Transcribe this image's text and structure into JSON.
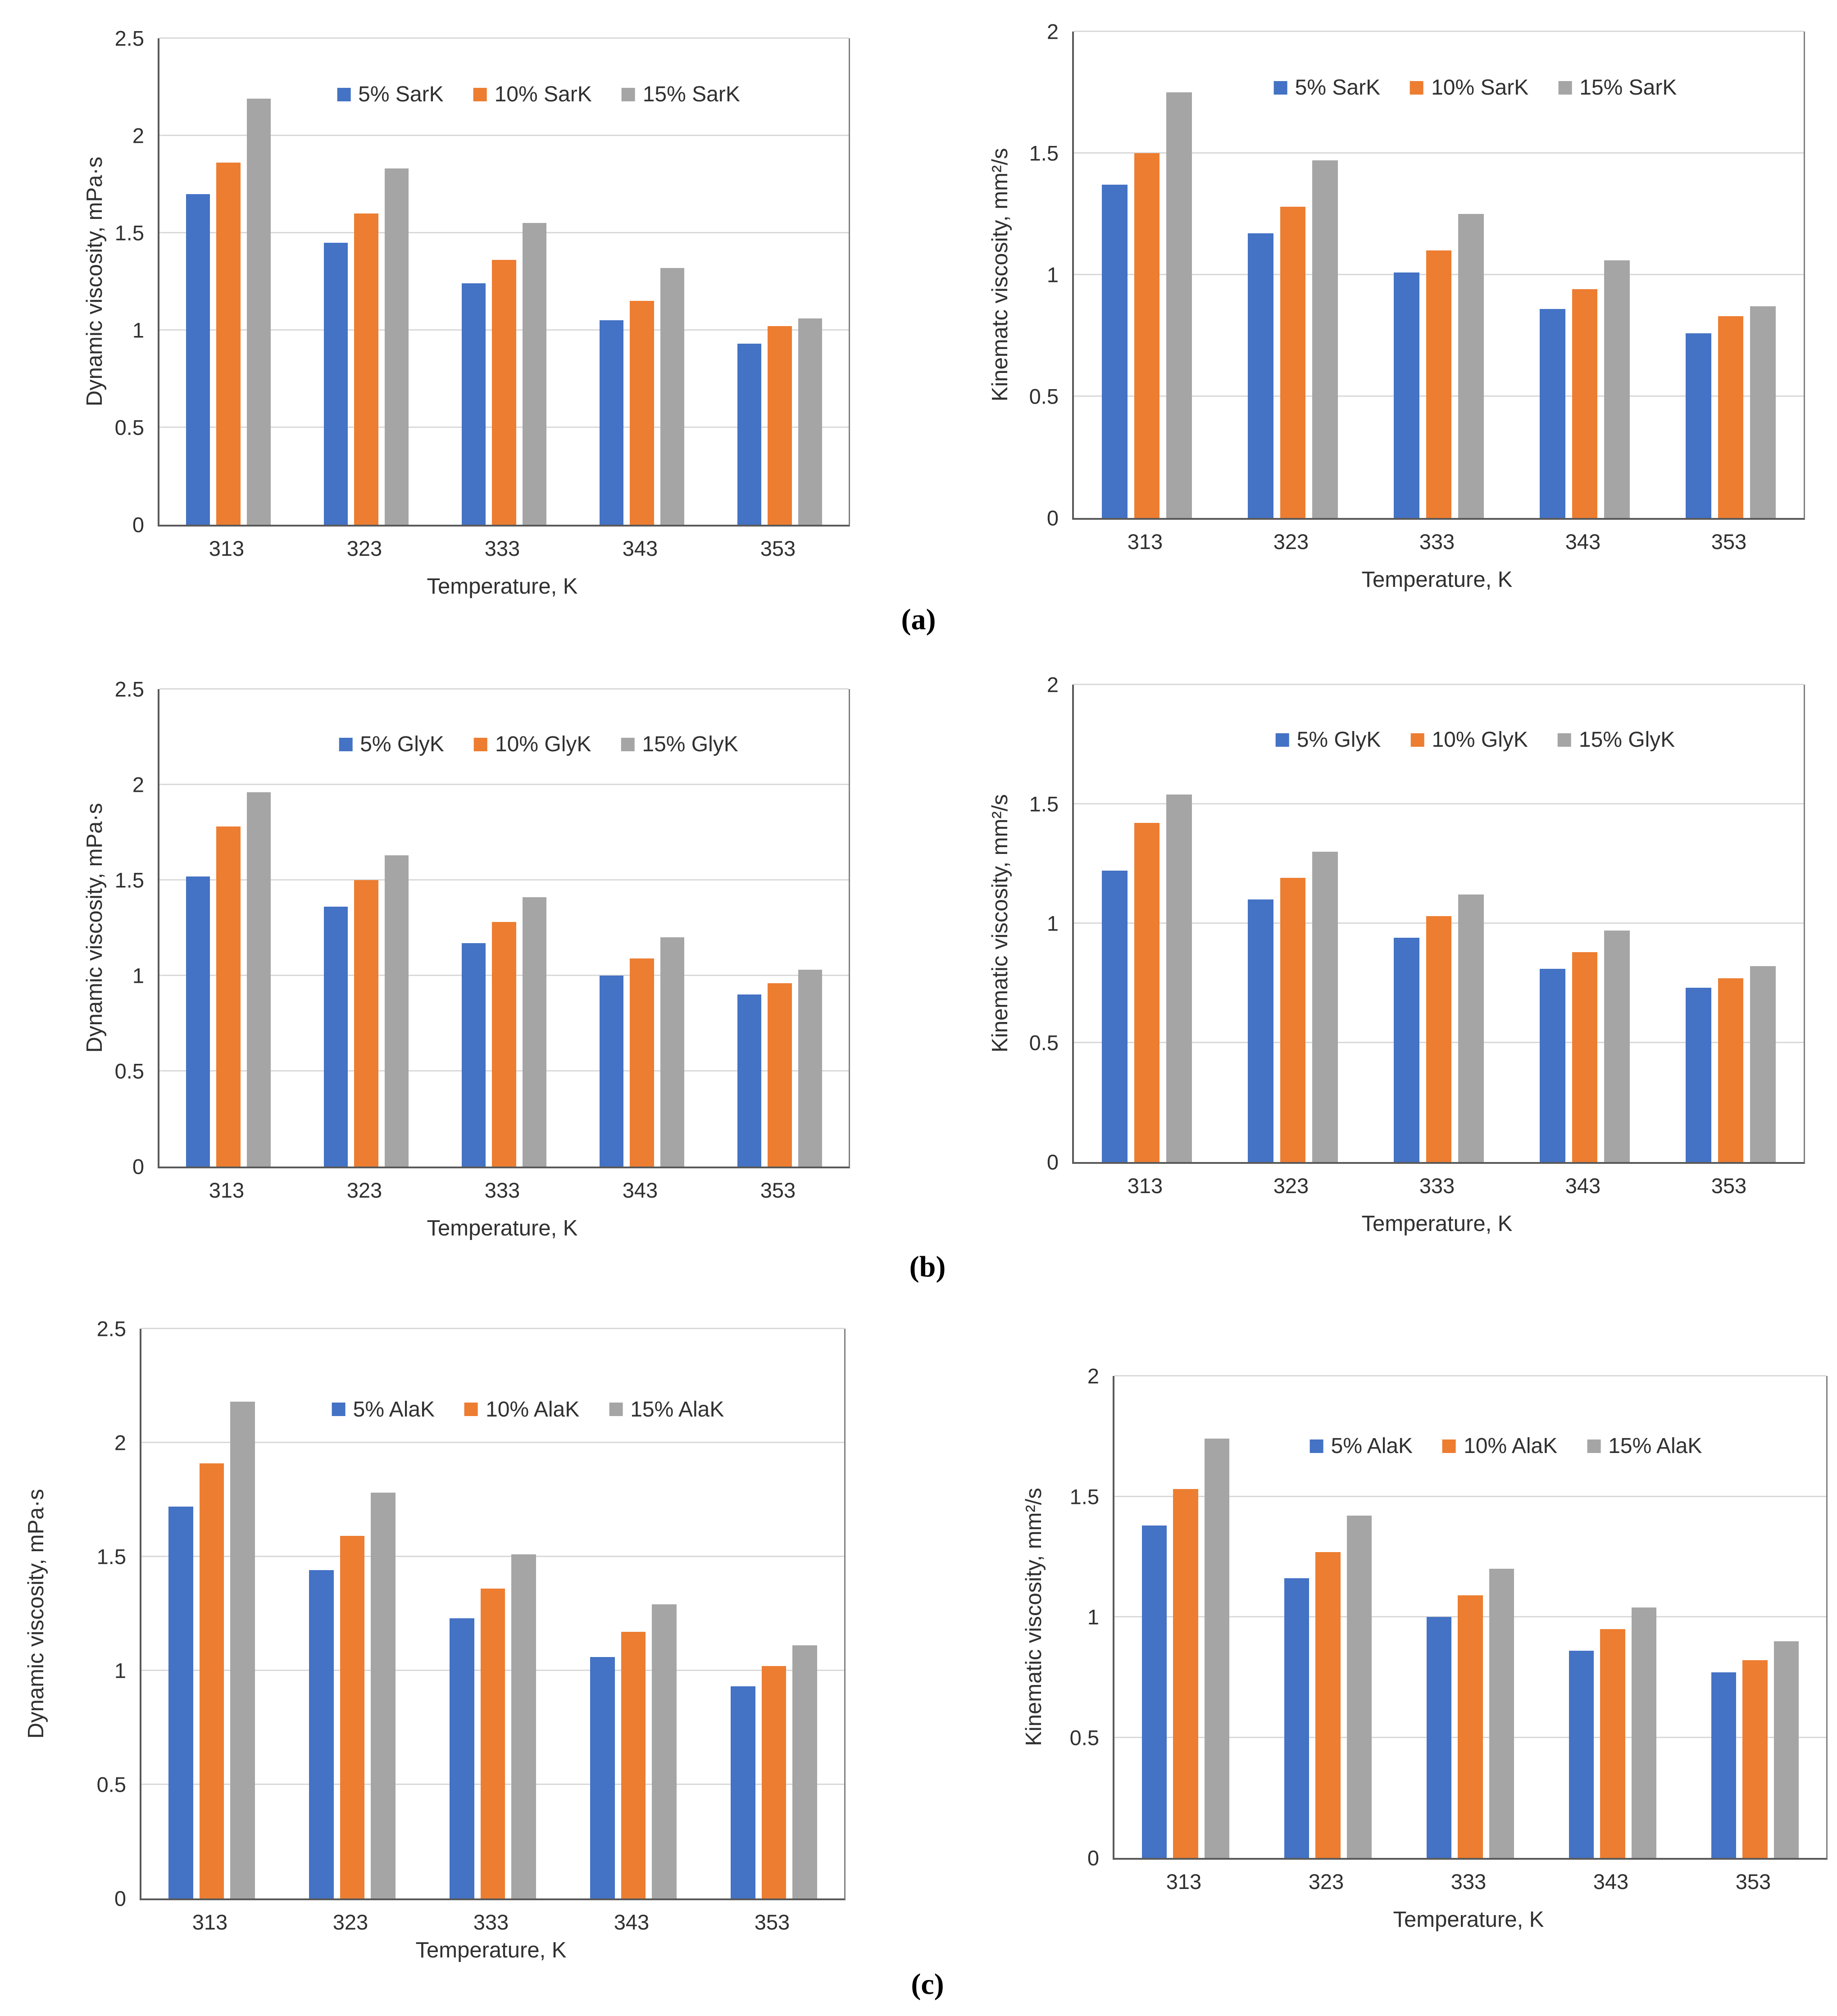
{
  "figure": {
    "panel_labels": [
      "(a)",
      "(b)",
      "(c)"
    ]
  },
  "colors": {
    "series": [
      "#4472C4",
      "#ED7D31",
      "#A5A5A5"
    ],
    "gridline": "#D9D9D9",
    "axis": "#595959",
    "text": "#303030"
  },
  "chart_data": [
    {
      "type": "bar",
      "panel": "a",
      "position": "left",
      "title": "",
      "ylabel": "Dynamic viscosity,  mPa·s",
      "xlabel": "Temperature, K",
      "categories": [
        "313",
        "323",
        "333",
        "343",
        "353"
      ],
      "ylim": [
        0,
        2.5
      ],
      "yticks": [
        0,
        0.5,
        1,
        1.5,
        2,
        2.5
      ],
      "ytick_labels": [
        "0",
        "0.5",
        "1",
        "1.5",
        "2",
        "2.5"
      ],
      "grid": true,
      "legend_position": "top-inside",
      "series": [
        {
          "name": "5% SarK",
          "values": [
            1.7,
            1.45,
            1.24,
            1.05,
            0.93
          ]
        },
        {
          "name": "10% SarK",
          "values": [
            1.86,
            1.6,
            1.36,
            1.15,
            1.02
          ]
        },
        {
          "name": "15% SarK",
          "values": [
            2.19,
            1.83,
            1.55,
            1.32,
            1.06
          ]
        }
      ]
    },
    {
      "type": "bar",
      "panel": "a",
      "position": "right",
      "title": "",
      "ylabel": "Kinematc viscosity,  mm²/s",
      "xlabel": "Temperature, K",
      "categories": [
        "313",
        "323",
        "333",
        "343",
        "353"
      ],
      "ylim": [
        0,
        2
      ],
      "yticks": [
        0,
        0.5,
        1,
        1.5,
        2
      ],
      "ytick_labels": [
        "0",
        "0.5",
        "1",
        "1.5",
        "2"
      ],
      "grid": true,
      "legend_position": "top-inside",
      "series": [
        {
          "name": "5% SarK",
          "values": [
            1.37,
            1.17,
            1.01,
            0.86,
            0.76
          ]
        },
        {
          "name": "10% SarK",
          "values": [
            1.5,
            1.28,
            1.1,
            0.94,
            0.83
          ]
        },
        {
          "name": "15% SarK",
          "values": [
            1.75,
            1.47,
            1.25,
            1.06,
            0.87
          ]
        }
      ]
    },
    {
      "type": "bar",
      "panel": "b",
      "position": "left",
      "title": "",
      "ylabel": "Dynamic viscosity, mPa·s",
      "xlabel": "Temperature, K",
      "categories": [
        "313",
        "323",
        "333",
        "343",
        "353"
      ],
      "ylim": [
        0,
        2.5
      ],
      "yticks": [
        0,
        0.5,
        1,
        1.5,
        2,
        2.5
      ],
      "ytick_labels": [
        "0",
        "0.5",
        "1",
        "1.5",
        "2",
        "2.5"
      ],
      "grid": true,
      "legend_position": "top-inside",
      "series": [
        {
          "name": "5% GlyK",
          "values": [
            1.52,
            1.36,
            1.17,
            1.0,
            0.9
          ]
        },
        {
          "name": "10% GlyK",
          "values": [
            1.78,
            1.5,
            1.28,
            1.09,
            0.96
          ]
        },
        {
          "name": "15% GlyK",
          "values": [
            1.96,
            1.63,
            1.41,
            1.2,
            1.03
          ]
        }
      ]
    },
    {
      "type": "bar",
      "panel": "b",
      "position": "right",
      "title": "",
      "ylabel": "Kinematic viscosity, mm²/s",
      "xlabel": "Temperature, K",
      "categories": [
        "313",
        "323",
        "333",
        "343",
        "353"
      ],
      "ylim": [
        0,
        2
      ],
      "yticks": [
        0,
        0.5,
        1,
        1.5,
        2
      ],
      "ytick_labels": [
        "0",
        "0.5",
        "1",
        "1.5",
        "2"
      ],
      "grid": true,
      "legend_position": "top-inside",
      "series": [
        {
          "name": "5% GlyK",
          "values": [
            1.22,
            1.1,
            0.94,
            0.81,
            0.73
          ]
        },
        {
          "name": "10% GlyK",
          "values": [
            1.42,
            1.19,
            1.03,
            0.88,
            0.77
          ]
        },
        {
          "name": "15% GlyK",
          "values": [
            1.54,
            1.3,
            1.12,
            0.97,
            0.82
          ]
        }
      ]
    },
    {
      "type": "bar",
      "panel": "c",
      "position": "left",
      "title": "",
      "ylabel": "Dynamic viscosity, mPa·s",
      "xlabel": "Temperature, K",
      "categories": [
        "313",
        "323",
        "333",
        "343",
        "353"
      ],
      "ylim": [
        0,
        2.5
      ],
      "yticks": [
        0,
        0.5,
        1,
        1.5,
        2,
        2.5
      ],
      "ytick_labels": [
        "0",
        "0.5",
        "1",
        "1.5",
        "2",
        "2.5"
      ],
      "grid": true,
      "legend_position": "top-inside",
      "series": [
        {
          "name": "5% AlaK",
          "values": [
            1.72,
            1.44,
            1.23,
            1.06,
            0.93
          ]
        },
        {
          "name": "10% AlaK",
          "values": [
            1.91,
            1.59,
            1.36,
            1.17,
            1.02
          ]
        },
        {
          "name": "15% AlaK",
          "values": [
            2.18,
            1.78,
            1.51,
            1.29,
            1.11
          ]
        }
      ]
    },
    {
      "type": "bar",
      "panel": "c",
      "position": "right",
      "title": "",
      "ylabel": "Kinematic viscosity, mm²/s",
      "xlabel": "Temperature, K",
      "categories": [
        "313",
        "323",
        "333",
        "343",
        "353"
      ],
      "ylim": [
        0,
        2
      ],
      "yticks": [
        0,
        0.5,
        1,
        1.5,
        2
      ],
      "ytick_labels": [
        "0",
        "0.5",
        "1",
        "1.5",
        "2"
      ],
      "grid": true,
      "legend_position": "top-inside",
      "series": [
        {
          "name": "5% AlaK",
          "values": [
            1.38,
            1.16,
            1.0,
            0.86,
            0.77
          ]
        },
        {
          "name": "10% AlaK",
          "values": [
            1.53,
            1.27,
            1.09,
            0.95,
            0.82
          ]
        },
        {
          "name": "15% AlaK",
          "values": [
            1.74,
            1.42,
            1.2,
            1.04,
            0.9
          ]
        }
      ]
    }
  ]
}
